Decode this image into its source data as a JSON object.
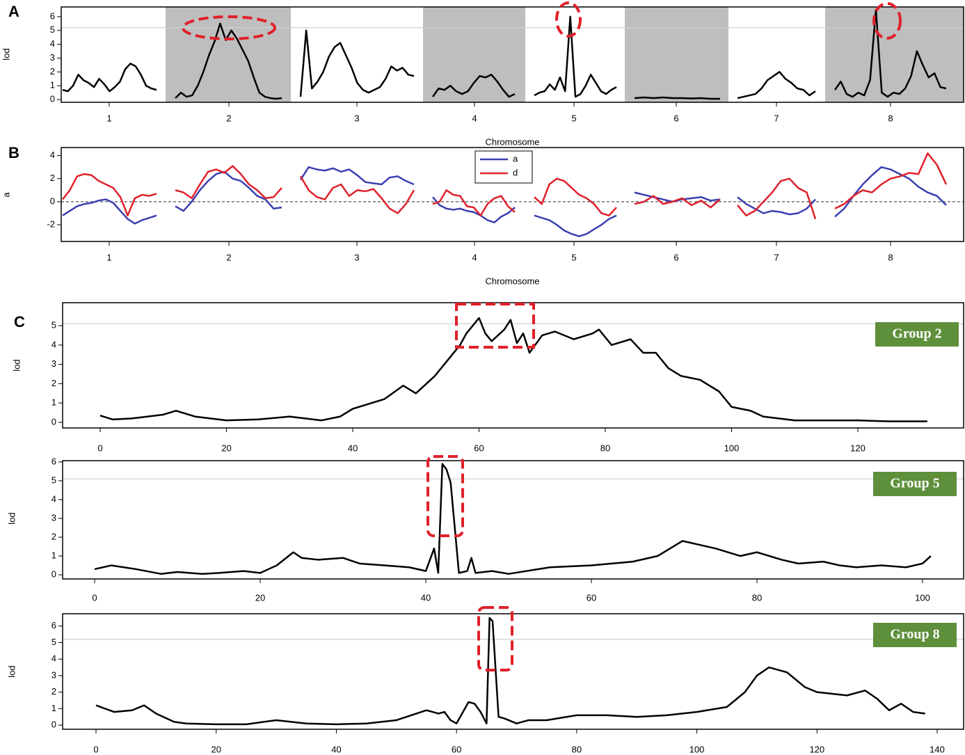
{
  "chart_data": [
    {
      "type": "genome-lod",
      "panel": "A",
      "ylabel": "lod",
      "xlabel": "Chromosome",
      "categories": [
        "1",
        "2",
        "3",
        "4",
        "5",
        "6",
        "7",
        "8"
      ],
      "color": "#000000",
      "band_shade": "#bebebe",
      "threshold": 5.2,
      "ylim": [
        -0.2,
        6.7
      ],
      "yticks": [
        0,
        1,
        2,
        3,
        4,
        5,
        6
      ],
      "values": [
        [
          0.7,
          0.6,
          1.0,
          1.8,
          1.4,
          1.2,
          0.9,
          1.5,
          1.1,
          0.6,
          0.9,
          1.3,
          2.2,
          2.6,
          2.4,
          1.8,
          1.0,
          0.8,
          0.7
        ],
        [
          0.1,
          0.5,
          0.2,
          0.3,
          1.0,
          2.0,
          3.2,
          4.2,
          5.5,
          4.3,
          5.0,
          4.4,
          3.6,
          2.8,
          1.6,
          0.5,
          0.2,
          0.1,
          0.05,
          0.1
        ],
        [
          0.2,
          5.0,
          0.8,
          1.3,
          2.0,
          3.1,
          3.8,
          4.1,
          3.2,
          2.3,
          1.2,
          0.7,
          0.5,
          0.7,
          0.9,
          1.5,
          2.4,
          2.1,
          2.3,
          1.8,
          1.7
        ],
        [
          0.2,
          0.8,
          0.7,
          1.0,
          0.6,
          0.4,
          0.6,
          1.2,
          1.7,
          1.6,
          1.8,
          1.3,
          0.7,
          0.2,
          0.4
        ],
        [
          0.3,
          0.5,
          0.6,
          1.1,
          0.7,
          1.6,
          0.6,
          6.0,
          0.2,
          0.4,
          1.0,
          1.8,
          1.2,
          0.6,
          0.4,
          0.7,
          0.9
        ],
        [
          0.1,
          0.15,
          0.1,
          0.15,
          0.1,
          0.1,
          0.08,
          0.1,
          0.05,
          0.05
        ],
        [
          0.1,
          0.2,
          0.3,
          0.4,
          0.8,
          1.4,
          1.7,
          2.0,
          1.5,
          1.2,
          0.8,
          0.7,
          0.3,
          0.6
        ],
        [
          0.7,
          1.3,
          0.4,
          0.2,
          0.5,
          0.3,
          1.4,
          6.5,
          0.5,
          0.2,
          0.5,
          0.4,
          0.8,
          1.7,
          3.5,
          2.5,
          1.6,
          1.9,
          0.9,
          0.8
        ]
      ]
    },
    {
      "type": "genome-effects",
      "panel": "B",
      "ylabel": "a",
      "xlabel": "Chromosome",
      "categories": [
        "1",
        "2",
        "3",
        "4",
        "5",
        "6",
        "7",
        "8"
      ],
      "ylim": [
        -3.45,
        4.7
      ],
      "yticks": [
        -2,
        0,
        2,
        4
      ],
      "zero_line": true,
      "series": [
        {
          "name": "a",
          "color": "#3a3fb0",
          "values": [
            [
              -1.2,
              -0.8,
              -0.4,
              -0.2,
              -0.1,
              0.1,
              0.2,
              -0.1,
              -0.8,
              -1.5,
              -1.9,
              -1.6,
              -1.4,
              -1.2
            ],
            [
              -0.4,
              -0.8,
              0.0,
              1.0,
              1.8,
              2.4,
              2.6,
              2.0,
              1.8,
              1.2,
              0.5,
              0.2,
              -0.6,
              -0.5
            ],
            [
              1.9,
              3.0,
              2.8,
              2.7,
              2.9,
              2.6,
              2.8,
              2.3,
              1.7,
              1.6,
              1.5,
              2.1,
              2.2,
              1.8,
              1.5
            ],
            [
              0.4,
              -0.3,
              -0.6,
              -0.7,
              -0.6,
              -0.8,
              -0.9,
              -1.2,
              -1.6,
              -1.8,
              -1.3,
              -1.0,
              -0.5
            ],
            [
              -1.2,
              -1.4,
              -1.6,
              -2.0,
              -2.5,
              -2.8,
              -3.0,
              -2.8,
              -2.4,
              -2.0,
              -1.5,
              -1.2
            ],
            [
              0.8,
              0.6,
              0.4,
              0.2,
              0.0,
              0.2,
              0.3,
              0.4,
              0.1,
              0.2
            ],
            [
              0.4,
              -0.2,
              -0.6,
              -1.0,
              -0.8,
              -0.9,
              -1.1,
              -1.0,
              -0.6,
              0.2
            ],
            [
              -1.3,
              -0.6,
              0.5,
              1.5,
              2.3,
              3.0,
              2.8,
              2.4,
              2.0,
              1.3,
              0.8,
              0.5,
              -0.3
            ]
          ]
        },
        {
          "name": "d",
          "color": "#e0202a",
          "values": [
            [
              0.2,
              1.0,
              2.2,
              2.4,
              2.3,
              1.8,
              1.5,
              1.2,
              0.4,
              -1.2,
              0.3,
              0.6,
              0.5,
              0.7
            ],
            [
              1.0,
              0.8,
              0.3,
              1.5,
              2.6,
              2.8,
              2.5,
              3.1,
              2.4,
              1.5,
              1.0,
              0.3,
              0.4,
              1.2
            ],
            [
              2.2,
              1.0,
              0.4,
              0.2,
              1.2,
              1.5,
              0.5,
              1.0,
              0.9,
              1.1,
              0.3,
              -0.6,
              -1.0,
              -0.2,
              1.0
            ],
            [
              -0.2,
              0.0,
              1.0,
              0.6,
              0.5,
              -0.4,
              -0.5,
              -1.2,
              -0.2,
              0.3,
              0.5,
              -0.4,
              -0.9
            ],
            [
              0.4,
              -0.2,
              1.5,
              2.0,
              1.8,
              1.2,
              0.6,
              0.3,
              -0.2,
              -1.0,
              -1.2,
              -0.5
            ],
            [
              -0.2,
              0.0,
              0.5,
              -0.2,
              0.0,
              0.3,
              -0.3,
              0.1,
              -0.5,
              0.2
            ],
            [
              -0.3,
              -1.2,
              -0.8,
              0.0,
              0.8,
              1.8,
              2.0,
              1.2,
              0.8,
              -1.5
            ],
            [
              -0.6,
              -0.2,
              0.5,
              1.0,
              0.8,
              1.5,
              2.0,
              2.2,
              2.5,
              2.4,
              4.2,
              3.2,
              1.5
            ]
          ]
        }
      ]
    },
    {
      "type": "line",
      "panel": "C",
      "ylabel": "lod",
      "annotation": "Group 2",
      "color": "#000000",
      "threshold": 5.1,
      "xlim": [
        -5.95,
        136.75
      ],
      "xticks": [
        0,
        20,
        40,
        60,
        80,
        100,
        120
      ],
      "ylim": [
        -0.29,
        6.19
      ],
      "yticks": [
        0,
        1,
        2,
        3,
        4,
        5
      ],
      "x": [
        0,
        2,
        5,
        10,
        12,
        15,
        20,
        25,
        30,
        35,
        38,
        40,
        45,
        48,
        50,
        53,
        55,
        57,
        58,
        60,
        61,
        62,
        64,
        65,
        66,
        67,
        68,
        70,
        72,
        75,
        78,
        79,
        81,
        84,
        86,
        88,
        90,
        92,
        95,
        98,
        100,
        103,
        105,
        110,
        115,
        120,
        125,
        131
      ],
      "values": [
        0.35,
        0.15,
        0.2,
        0.4,
        0.6,
        0.3,
        0.1,
        0.15,
        0.3,
        0.1,
        0.3,
        0.7,
        1.2,
        1.9,
        1.5,
        2.4,
        3.2,
        4.0,
        4.6,
        5.4,
        4.6,
        4.2,
        4.8,
        5.3,
        4.1,
        4.6,
        3.6,
        4.5,
        4.7,
        4.3,
        4.6,
        4.8,
        4.0,
        4.3,
        3.6,
        3.6,
        2.8,
        2.4,
        2.2,
        1.6,
        0.8,
        0.6,
        0.3,
        0.1,
        0.1,
        0.1,
        0.05,
        0.05
      ]
    },
    {
      "type": "line",
      "ylabel": "lod",
      "annotation": "Group 5",
      "color": "#000000",
      "threshold": 5.1,
      "xlim": [
        -3.87,
        104.96
      ],
      "xticks": [
        0,
        20,
        40,
        60,
        80,
        100
      ],
      "ylim": [
        -0.22,
        6.07
      ],
      "yticks": [
        0,
        1,
        2,
        3,
        4,
        5,
        6
      ],
      "x": [
        0,
        2,
        5,
        8,
        10,
        13,
        15,
        18,
        20,
        22,
        24,
        25,
        27,
        30,
        32,
        35,
        38,
        40,
        41,
        41.5,
        42,
        42.5,
        43,
        44,
        45,
        45.5,
        46,
        48,
        50,
        55,
        60,
        65,
        68,
        71,
        73,
        75,
        78,
        80,
        83,
        85,
        88,
        90,
        92,
        95,
        98,
        100,
        101
      ],
      "values": [
        0.3,
        0.5,
        0.3,
        0.05,
        0.15,
        0.05,
        0.1,
        0.2,
        0.1,
        0.5,
        1.2,
        0.9,
        0.8,
        0.9,
        0.6,
        0.5,
        0.4,
        0.2,
        1.4,
        0.1,
        5.9,
        5.6,
        4.9,
        0.1,
        0.2,
        0.9,
        0.1,
        0.2,
        0.05,
        0.4,
        0.5,
        0.7,
        1.0,
        1.8,
        1.6,
        1.4,
        1.0,
        1.2,
        0.8,
        0.6,
        0.7,
        0.5,
        0.4,
        0.5,
        0.4,
        0.6,
        1.0
      ]
    },
    {
      "type": "line",
      "ylabel": "lod",
      "annotation": "Group 8",
      "color": "#000000",
      "threshold": 5.2,
      "xlim": [
        -5.56,
        144.4
      ],
      "xticks": [
        0,
        20,
        40,
        60,
        80,
        100,
        120,
        140
      ],
      "ylim": [
        -0.25,
        6.75
      ],
      "yticks": [
        0,
        1,
        2,
        3,
        4,
        5,
        6
      ],
      "x": [
        0,
        3,
        6,
        8,
        10,
        13,
        15,
        20,
        25,
        30,
        35,
        40,
        45,
        50,
        55,
        57,
        58,
        59,
        60,
        62,
        63,
        64,
        65,
        65.5,
        66,
        67,
        68,
        70,
        72,
        75,
        80,
        85,
        90,
        95,
        100,
        105,
        108,
        110,
        112,
        115,
        118,
        120,
        125,
        128,
        130,
        132,
        134,
        136,
        138
      ],
      "values": [
        1.2,
        0.8,
        0.9,
        1.2,
        0.7,
        0.2,
        0.1,
        0.05,
        0.05,
        0.3,
        0.1,
        0.05,
        0.1,
        0.3,
        0.9,
        0.7,
        0.8,
        0.3,
        0.1,
        1.4,
        1.3,
        0.8,
        0.1,
        6.5,
        6.3,
        0.5,
        0.4,
        0.1,
        0.3,
        0.3,
        0.6,
        0.6,
        0.5,
        0.6,
        0.8,
        1.1,
        2.0,
        3.0,
        3.5,
        3.2,
        2.3,
        2.0,
        1.8,
        2.1,
        1.6,
        0.9,
        1.3,
        0.8,
        0.7
      ]
    }
  ]
}
